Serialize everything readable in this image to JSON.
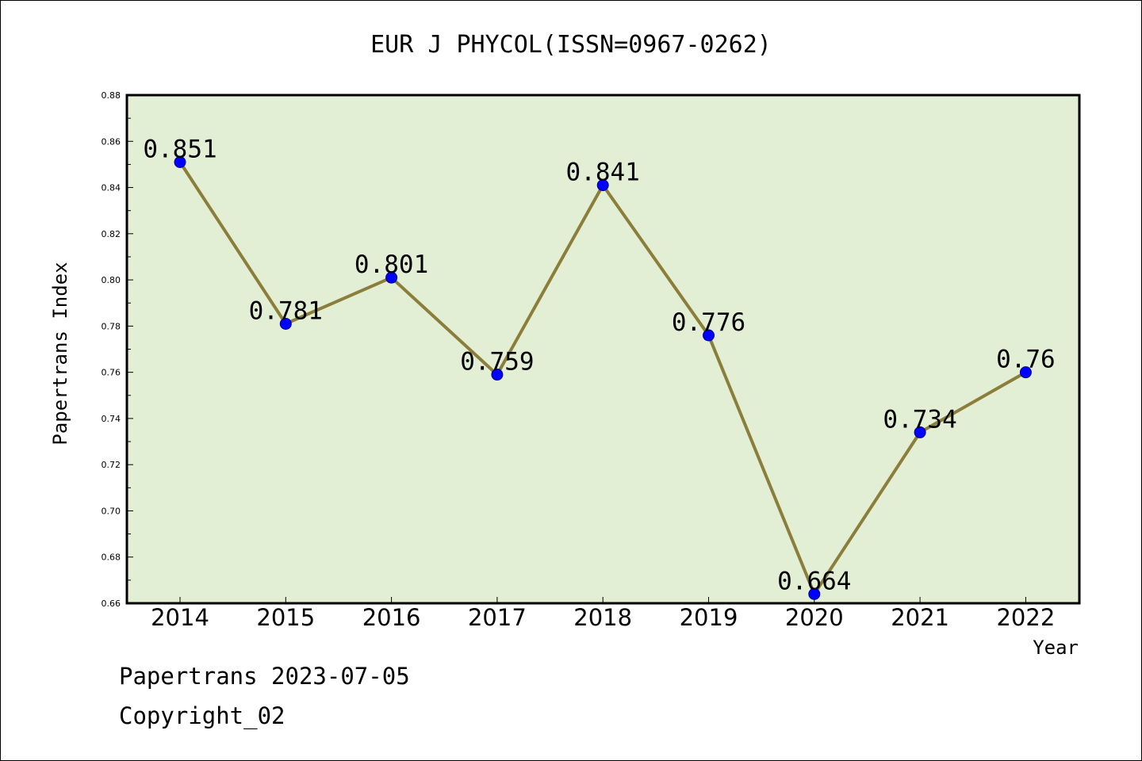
{
  "chart_data": {
    "type": "line",
    "title": "EUR J PHYCOL(ISSN=0967-0262)",
    "xlabel": "Year",
    "ylabel": "Papertrans Index",
    "categories": [
      "2014",
      "2015",
      "2016",
      "2017",
      "2018",
      "2019",
      "2020",
      "2021",
      "2022"
    ],
    "series": [
      {
        "values": [
          0.851,
          0.781,
          0.801,
          0.759,
          0.841,
          0.776,
          0.664,
          0.734,
          0.76
        ],
        "labels": [
          "0.851",
          "0.781",
          "0.801",
          "0.759",
          "0.841",
          "0.776",
          "0.664",
          "0.734",
          "0.76"
        ]
      }
    ],
    "ylim": [
      0.66,
      0.88
    ],
    "yticks": [
      "0.66",
      "0.68",
      "0.70",
      "0.72",
      "0.74",
      "0.76",
      "0.78",
      "0.80",
      "0.82",
      "0.84",
      "0.86",
      "0.88"
    ],
    "grid": false,
    "colors": {
      "plot_background": "#e2efd5",
      "line": "#8b7d3a",
      "marker": "#0000ff"
    }
  },
  "footer": {
    "line1": "Papertrans 2023-07-05",
    "line2": "Copyright_02"
  }
}
